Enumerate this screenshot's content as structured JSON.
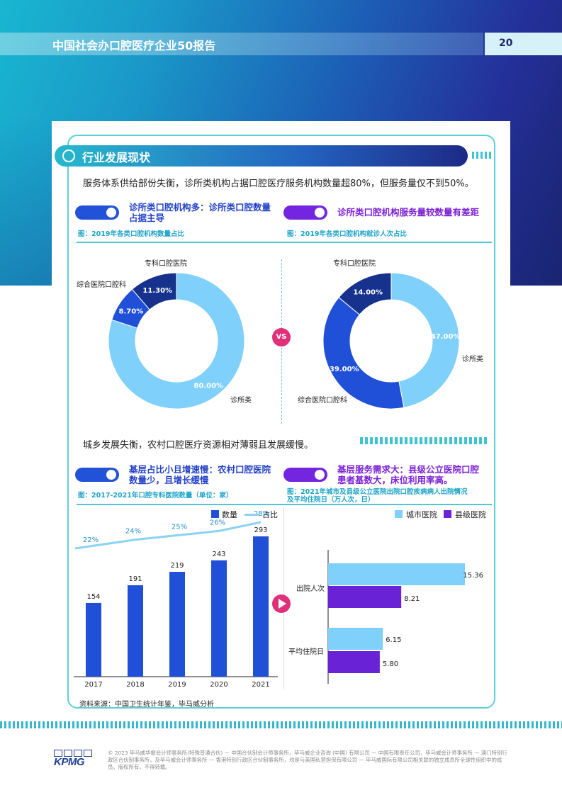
{
  "header": {
    "title": "中国社会办口腔医疗企业50报告",
    "page_number": "20"
  },
  "section": {
    "title": "行业发展现状",
    "intro1": "服务体系供给部份失衡，诊所类机构占据口腔医疗服务机构数量超80%，但服务量仅不到50%。",
    "intro2": "城乡发展失衡，农村口腔医疗资源相对薄弱且发展缓慢。"
  },
  "highlights": {
    "left1": [
      "诊所类口腔机构多：诊所类口腔数量",
      "占据主导"
    ],
    "right1": [
      "诊所类口腔机构服务量较数量有差距"
    ],
    "left2": [
      "基层占比小且增速慢：农村口腔医院",
      "数量少，且增长缓慢"
    ],
    "right2": [
      "基层服务需求大：县级公立医院口腔",
      "患者基数大，床位利用率高。"
    ]
  },
  "captions": {
    "fig1": "图：2019年各类口腔机构数量占比",
    "fig2": "图：2019年各类口腔机构就诊人次占比",
    "fig3": "图：2017-2021年口腔专科医院数量（单位：家）",
    "fig4": [
      "图：2021年城市及县级公立医院出院口腔疾病病人出院情况",
      "及平均住院日（万人次，日）"
    ]
  },
  "vs_label": "VS",
  "source": "资料来源：中国卫生统计年鉴，毕马威分析",
  "footer": {
    "logo_text": "KPMG",
    "copyright": "© 2023 毕马威华振会计师事务所(特殊普通合伙) — 中国合伙制会计师事务所，毕马威企业咨询 (中国) 有限公司 — 中国有限责任公司，毕马威会计师事务所 — 澳门特别行政区合伙制事务所，及毕马威会计师事务所 — 香港特别行政区合伙制事务所，均是与英国私营担保有限公司 — 毕马威国际有限公司相关联的独立成员所全球性组织中的成员。版权所有，不得转载。"
  },
  "colors": {
    "light_blue": "#7fd0fb",
    "mid_blue": "#2050d8",
    "dark_navy": "#16328c",
    "purple": "#6a22d6",
    "line": "#8ad3f3",
    "accent": "#e0307a"
  },
  "chart_data": [
    {
      "type": "pie",
      "donut": true,
      "categories": [
        "诊所类",
        "综合医院口腔科",
        "专科口腔医院"
      ],
      "values": [
        80.0,
        8.7,
        11.3
      ],
      "value_labels": [
        "80.00%",
        "8.70%",
        "11.30%"
      ]
    },
    {
      "type": "pie",
      "donut": true,
      "categories": [
        "诊所类",
        "综合医院口腔科",
        "专科口腔医院"
      ],
      "values": [
        47.0,
        39.0,
        14.0
      ],
      "value_labels": [
        "47.00%",
        "39.00%",
        "14.00%"
      ]
    },
    {
      "type": "bar",
      "categories": [
        "2017",
        "2018",
        "2019",
        "2020",
        "2021"
      ],
      "series": [
        {
          "name": "数量",
          "type": "bar",
          "values": [
            154,
            191,
            219,
            243,
            293
          ]
        },
        {
          "name": "占比",
          "type": "line",
          "values": [
            22,
            24,
            25,
            26,
            28
          ],
          "value_labels": [
            "22%",
            "24%",
            "25%",
            "26%",
            "28%"
          ]
        }
      ],
      "ylim": [
        0,
        300
      ]
    },
    {
      "type": "bar",
      "orientation": "horizontal",
      "categories": [
        "出院人次",
        "平均住院日"
      ],
      "series": [
        {
          "name": "城市医院",
          "values": [
            15.36,
            6.15
          ]
        },
        {
          "name": "县级医院",
          "values": [
            8.21,
            5.8
          ]
        }
      ],
      "value_labels": [
        [
          "15.36",
          "6.15"
        ],
        [
          "8.21",
          "5.80"
        ]
      ],
      "legend": "top-right"
    }
  ]
}
